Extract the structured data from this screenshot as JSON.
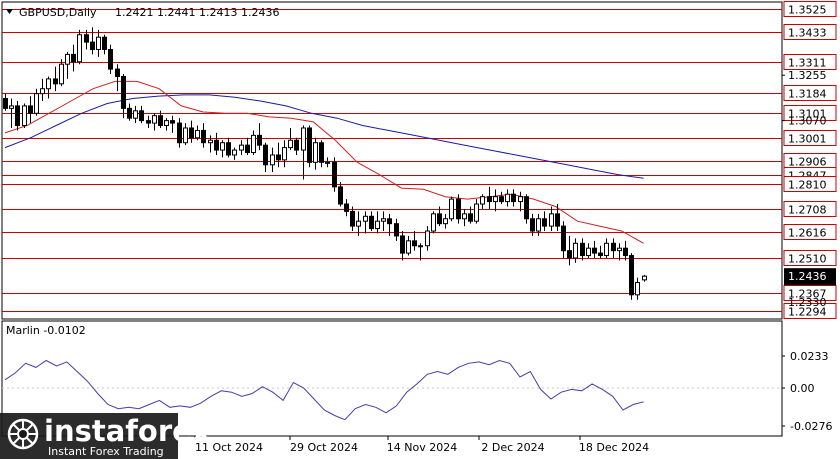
{
  "header": {
    "symbol": "GBPUSD,Daily",
    "quote": "1.2421 1.2441 1.2413 1.2436"
  },
  "indicator": {
    "label": "Marlin -0.0102",
    "axis_labels": [
      "0.0233",
      "0.00",
      "-0.0276"
    ]
  },
  "watermark": {
    "brand": "instaforex",
    "tagline": "Instant Forex Trading"
  },
  "colors": {
    "level_line": "#cc0000",
    "ma_slow": "#1a1aa6",
    "ma_fast": "#cc2222",
    "candle": "#000000",
    "oscillator": "#4b3aa8",
    "current_price_bg": "#000000",
    "watermark_bg": "#1a1a1a"
  },
  "chart_data": {
    "type": "candlestick",
    "price_axis": {
      "range": [
        1.2262,
        1.3546
      ],
      "levels": [
        1.3525,
        1.3433,
        1.3311,
        1.3184,
        1.3101,
        1.3001,
        1.2906,
        1.2847,
        1.281,
        1.2708,
        1.2616,
        1.251,
        1.2367,
        1.2294
      ],
      "plain_ticks": [
        1.3255,
        1.307
      ],
      "hidden_ticks": [
        1.233
      ],
      "current_price": 1.2436
    },
    "time_axis": {
      "labels": [
        "11 Oct 2024",
        "29 Oct 2024",
        "14 Nov 2024",
        "2 Dec 2024",
        "18 Dec 2024"
      ]
    },
    "candles": [
      [
        1.316,
        1.318,
        1.311,
        1.312
      ],
      [
        1.312,
        1.316,
        1.304,
        1.313
      ],
      [
        1.313,
        1.315,
        1.303,
        1.305
      ],
      [
        1.305,
        1.314,
        1.304,
        1.313
      ],
      [
        1.313,
        1.317,
        1.306,
        1.31
      ],
      [
        1.31,
        1.32,
        1.309,
        1.318
      ],
      [
        1.318,
        1.324,
        1.315,
        1.32
      ],
      [
        1.32,
        1.325,
        1.316,
        1.324
      ],
      [
        1.324,
        1.329,
        1.319,
        1.322
      ],
      [
        1.322,
        1.332,
        1.321,
        1.33
      ],
      [
        1.33,
        1.335,
        1.324,
        1.334
      ],
      [
        1.334,
        1.338,
        1.327,
        1.331
      ],
      [
        1.331,
        1.344,
        1.33,
        1.342
      ],
      [
        1.342,
        1.344,
        1.336,
        1.339
      ],
      [
        1.339,
        1.345,
        1.334,
        1.336
      ],
      [
        1.336,
        1.344,
        1.333,
        1.341
      ],
      [
        1.341,
        1.342,
        1.334,
        1.336
      ],
      [
        1.336,
        1.338,
        1.326,
        1.328
      ],
      [
        1.328,
        1.33,
        1.319,
        1.325
      ],
      [
        1.325,
        1.326,
        1.308,
        1.312
      ],
      [
        1.312,
        1.314,
        1.307,
        1.308
      ],
      [
        1.308,
        1.313,
        1.306,
        1.311
      ],
      [
        1.311,
        1.313,
        1.306,
        1.307
      ],
      [
        1.307,
        1.309,
        1.304,
        1.306
      ],
      [
        1.306,
        1.31,
        1.303,
        1.309
      ],
      [
        1.309,
        1.311,
        1.304,
        1.305
      ],
      [
        1.305,
        1.308,
        1.303,
        1.307
      ],
      [
        1.307,
        1.309,
        1.302,
        1.306
      ],
      [
        1.306,
        1.308,
        1.296,
        1.298
      ],
      [
        1.298,
        1.306,
        1.297,
        1.304
      ],
      [
        1.304,
        1.307,
        1.298,
        1.3
      ],
      [
        1.3,
        1.305,
        1.299,
        1.303
      ],
      [
        1.303,
        1.306,
        1.296,
        1.298
      ],
      [
        1.298,
        1.301,
        1.294,
        1.299
      ],
      [
        1.299,
        1.302,
        1.293,
        1.295
      ],
      [
        1.295,
        1.299,
        1.292,
        1.298
      ],
      [
        1.298,
        1.3,
        1.292,
        1.293
      ],
      [
        1.293,
        1.296,
        1.291,
        1.295
      ],
      [
        1.295,
        1.299,
        1.293,
        1.297
      ],
      [
        1.297,
        1.3,
        1.293,
        1.294
      ],
      [
        1.294,
        1.303,
        1.293,
        1.301
      ],
      [
        1.301,
        1.306,
        1.295,
        1.297
      ],
      [
        1.297,
        1.298,
        1.286,
        1.289
      ],
      [
        1.289,
        1.296,
        1.286,
        1.293
      ],
      [
        1.293,
        1.298,
        1.288,
        1.291
      ],
      [
        1.291,
        1.299,
        1.288,
        1.296
      ],
      [
        1.296,
        1.304,
        1.295,
        1.299
      ],
      [
        1.299,
        1.3,
        1.293,
        1.295
      ],
      [
        1.295,
        1.305,
        1.283,
        1.304
      ],
      [
        1.304,
        1.305,
        1.288,
        1.29
      ],
      [
        1.29,
        1.3,
        1.287,
        1.298
      ],
      [
        1.298,
        1.299,
        1.288,
        1.29
      ],
      [
        1.29,
        1.292,
        1.288,
        1.29
      ],
      [
        1.29,
        1.292,
        1.278,
        1.28
      ],
      [
        1.28,
        1.282,
        1.272,
        1.273
      ],
      [
        1.273,
        1.275,
        1.268,
        1.27
      ],
      [
        1.27,
        1.272,
        1.262,
        1.264
      ],
      [
        1.264,
        1.27,
        1.26,
        1.266
      ],
      [
        1.266,
        1.27,
        1.261,
        1.268
      ],
      [
        1.268,
        1.27,
        1.262,
        1.263
      ],
      [
        1.263,
        1.27,
        1.261,
        1.266
      ],
      [
        1.266,
        1.27,
        1.262,
        1.267
      ],
      [
        1.267,
        1.269,
        1.26,
        1.265
      ],
      [
        1.265,
        1.267,
        1.258,
        1.26
      ],
      [
        1.26,
        1.262,
        1.25,
        1.253
      ],
      [
        1.253,
        1.26,
        1.252,
        1.258
      ],
      [
        1.258,
        1.262,
        1.254,
        1.256
      ],
      [
        1.256,
        1.257,
        1.25,
        1.256
      ],
      [
        1.256,
        1.264,
        1.254,
        1.262
      ],
      [
        1.262,
        1.27,
        1.261,
        1.269
      ],
      [
        1.269,
        1.272,
        1.264,
        1.265
      ],
      [
        1.265,
        1.269,
        1.263,
        1.267
      ],
      [
        1.267,
        1.276,
        1.266,
        1.275
      ],
      [
        1.275,
        1.277,
        1.265,
        1.267
      ],
      [
        1.267,
        1.271,
        1.264,
        1.269
      ],
      [
        1.269,
        1.272,
        1.265,
        1.266
      ],
      [
        1.266,
        1.275,
        1.265,
        1.273
      ],
      [
        1.273,
        1.277,
        1.271,
        1.276
      ],
      [
        1.276,
        1.28,
        1.271,
        1.274
      ],
      [
        1.274,
        1.279,
        1.27,
        1.276
      ],
      [
        1.276,
        1.278,
        1.273,
        1.274
      ],
      [
        1.274,
        1.279,
        1.272,
        1.277
      ],
      [
        1.277,
        1.279,
        1.272,
        1.274
      ],
      [
        1.274,
        1.278,
        1.27,
        1.276
      ],
      [
        1.276,
        1.277,
        1.265,
        1.267
      ],
      [
        1.267,
        1.269,
        1.26,
        1.262
      ],
      [
        1.262,
        1.269,
        1.26,
        1.267
      ],
      [
        1.267,
        1.27,
        1.262,
        1.264
      ],
      [
        1.264,
        1.272,
        1.262,
        1.269
      ],
      [
        1.269,
        1.273,
        1.262,
        1.264
      ],
      [
        1.264,
        1.266,
        1.251,
        1.254
      ],
      [
        1.254,
        1.26,
        1.248,
        1.251
      ],
      [
        1.251,
        1.259,
        1.249,
        1.257
      ],
      [
        1.257,
        1.259,
        1.25,
        1.252
      ],
      [
        1.252,
        1.257,
        1.251,
        1.255
      ],
      [
        1.255,
        1.258,
        1.251,
        1.253
      ],
      [
        1.253,
        1.256,
        1.251,
        1.252
      ],
      [
        1.252,
        1.259,
        1.251,
        1.257
      ],
      [
        1.257,
        1.259,
        1.251,
        1.254
      ],
      [
        1.254,
        1.257,
        1.25,
        1.255
      ],
      [
        1.255,
        1.258,
        1.25,
        1.252
      ],
      [
        1.252,
        1.253,
        1.234,
        1.236
      ],
      [
        1.236,
        1.243,
        1.234,
        1.241
      ],
      [
        1.2421,
        1.2441,
        1.2413,
        1.2436
      ]
    ],
    "ma_slow": {
      "start": 0,
      "values": [
        1.296,
        1.3,
        1.305,
        1.31,
        1.314,
        1.316,
        1.317,
        1.3175,
        1.3175,
        1.3165,
        1.315,
        1.313,
        1.31,
        1.308,
        1.305,
        1.303,
        1.301,
        1.299,
        1.297,
        1.295,
        1.293,
        1.291,
        1.289,
        1.287,
        1.285,
        1.2835
      ]
    },
    "ma_fast": {
      "start": 0,
      "values": [
        1.302,
        1.305,
        1.31,
        1.315,
        1.32,
        1.323,
        1.323,
        1.32,
        1.313,
        1.3105,
        1.31,
        1.31,
        1.3085,
        1.308,
        1.3065,
        1.299,
        1.29,
        1.285,
        1.2795,
        1.279,
        1.276,
        1.275,
        1.276,
        1.277,
        1.275,
        1.272,
        1.266,
        1.264,
        1.262,
        1.257
      ]
    },
    "oscillator": {
      "name": "Marlin",
      "range": [
        -0.0276,
        0.0233
      ],
      "values": [
        0.006,
        0.011,
        0.018,
        0.015,
        0.02,
        0.016,
        0.019,
        0.012,
        0.005,
        -0.004,
        -0.012,
        -0.015,
        -0.014,
        -0.015,
        -0.012,
        -0.009,
        -0.014,
        -0.013,
        -0.014,
        -0.011,
        -0.006,
        -0.002,
        -0.003,
        -0.006,
        -0.004,
        0.001,
        -0.003,
        -0.009,
        0.004,
        0.0,
        -0.008,
        -0.016,
        -0.02,
        -0.023,
        -0.015,
        -0.012,
        -0.014,
        -0.018,
        -0.013,
        -0.003,
        0.003,
        0.01,
        0.012,
        0.01,
        0.015,
        0.018,
        0.019,
        0.017,
        0.02,
        0.018,
        0.008,
        0.012,
        -0.001,
        -0.008,
        -0.003,
        -0.001,
        -0.002,
        0.003,
        -0.001,
        -0.006,
        -0.016,
        -0.012,
        -0.01
      ]
    }
  }
}
